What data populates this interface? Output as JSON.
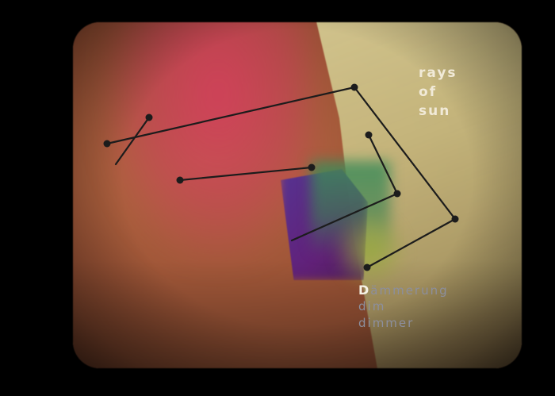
{
  "captions": {
    "rays": [
      "rays",
      "of",
      "sun"
    ],
    "dusk": {
      "initial": "D",
      "rest": "ämmerung",
      "lines": [
        "dim",
        "dimmer"
      ]
    }
  },
  "colors": {
    "background": "#000000",
    "line": "#1c1c1c",
    "rays_text": "#f1ead8",
    "dusk_text": "#8c8f9e",
    "dusk_initial": "#f6f2e6"
  }
}
